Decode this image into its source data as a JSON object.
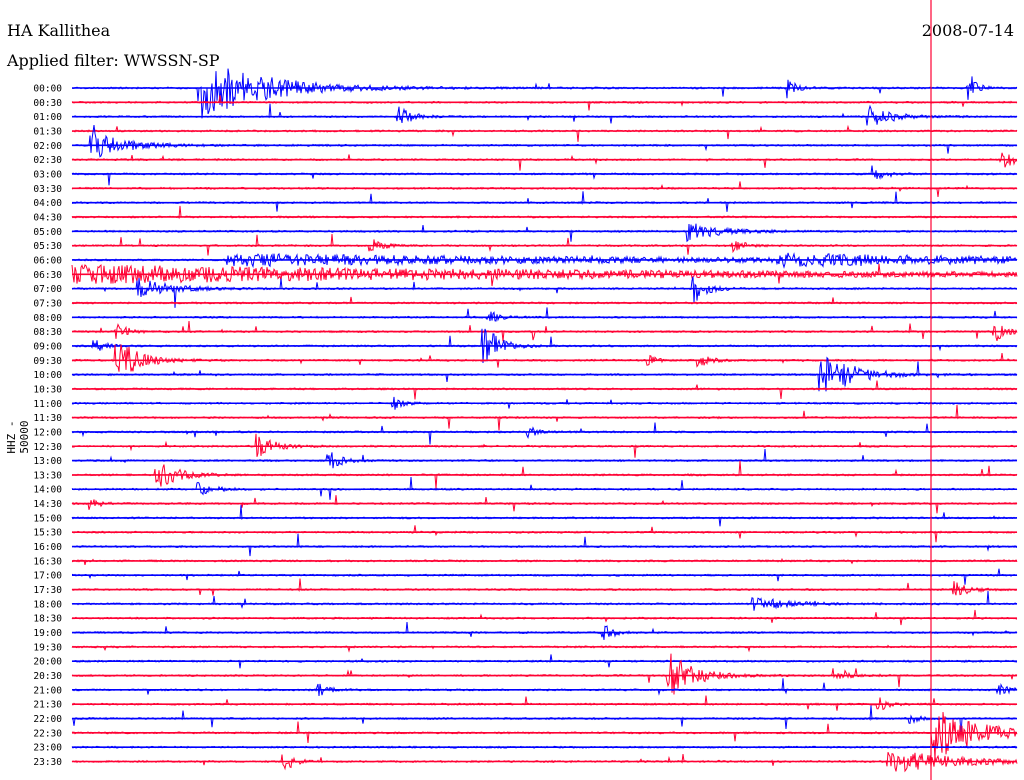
{
  "header": {
    "station": "HA Kallithea",
    "date": "2008-07-14",
    "filter_label": "Applied filter: WWSSN-SP"
  },
  "colors": {
    "even_row": "#0000ff",
    "odd_row": "#ff0033",
    "marker": "#ff0033",
    "text": "#000000"
  },
  "chart_data": {
    "type": "line",
    "ylabel": "HHZ - 50000",
    "rows": [
      "00:00",
      "00:30",
      "01:00",
      "01:30",
      "02:00",
      "02:30",
      "03:00",
      "03:30",
      "04:00",
      "04:30",
      "05:00",
      "05:30",
      "06:00",
      "06:30",
      "07:00",
      "07:30",
      "08:00",
      "08:30",
      "09:00",
      "09:30",
      "10:00",
      "10:30",
      "11:00",
      "11:30",
      "12:00",
      "12:30",
      "13:00",
      "13:30",
      "14:00",
      "14:30",
      "15:00",
      "15:30",
      "16:00",
      "16:30",
      "17:00",
      "17:30",
      "18:00",
      "18:30",
      "19:00",
      "19:30",
      "20:00",
      "20:30",
      "21:00",
      "21:30",
      "22:00",
      "22:30",
      "23:00",
      "23:30"
    ],
    "row_colors": [
      "blue",
      "red"
    ],
    "row_duration_minutes": 30
  }
}
